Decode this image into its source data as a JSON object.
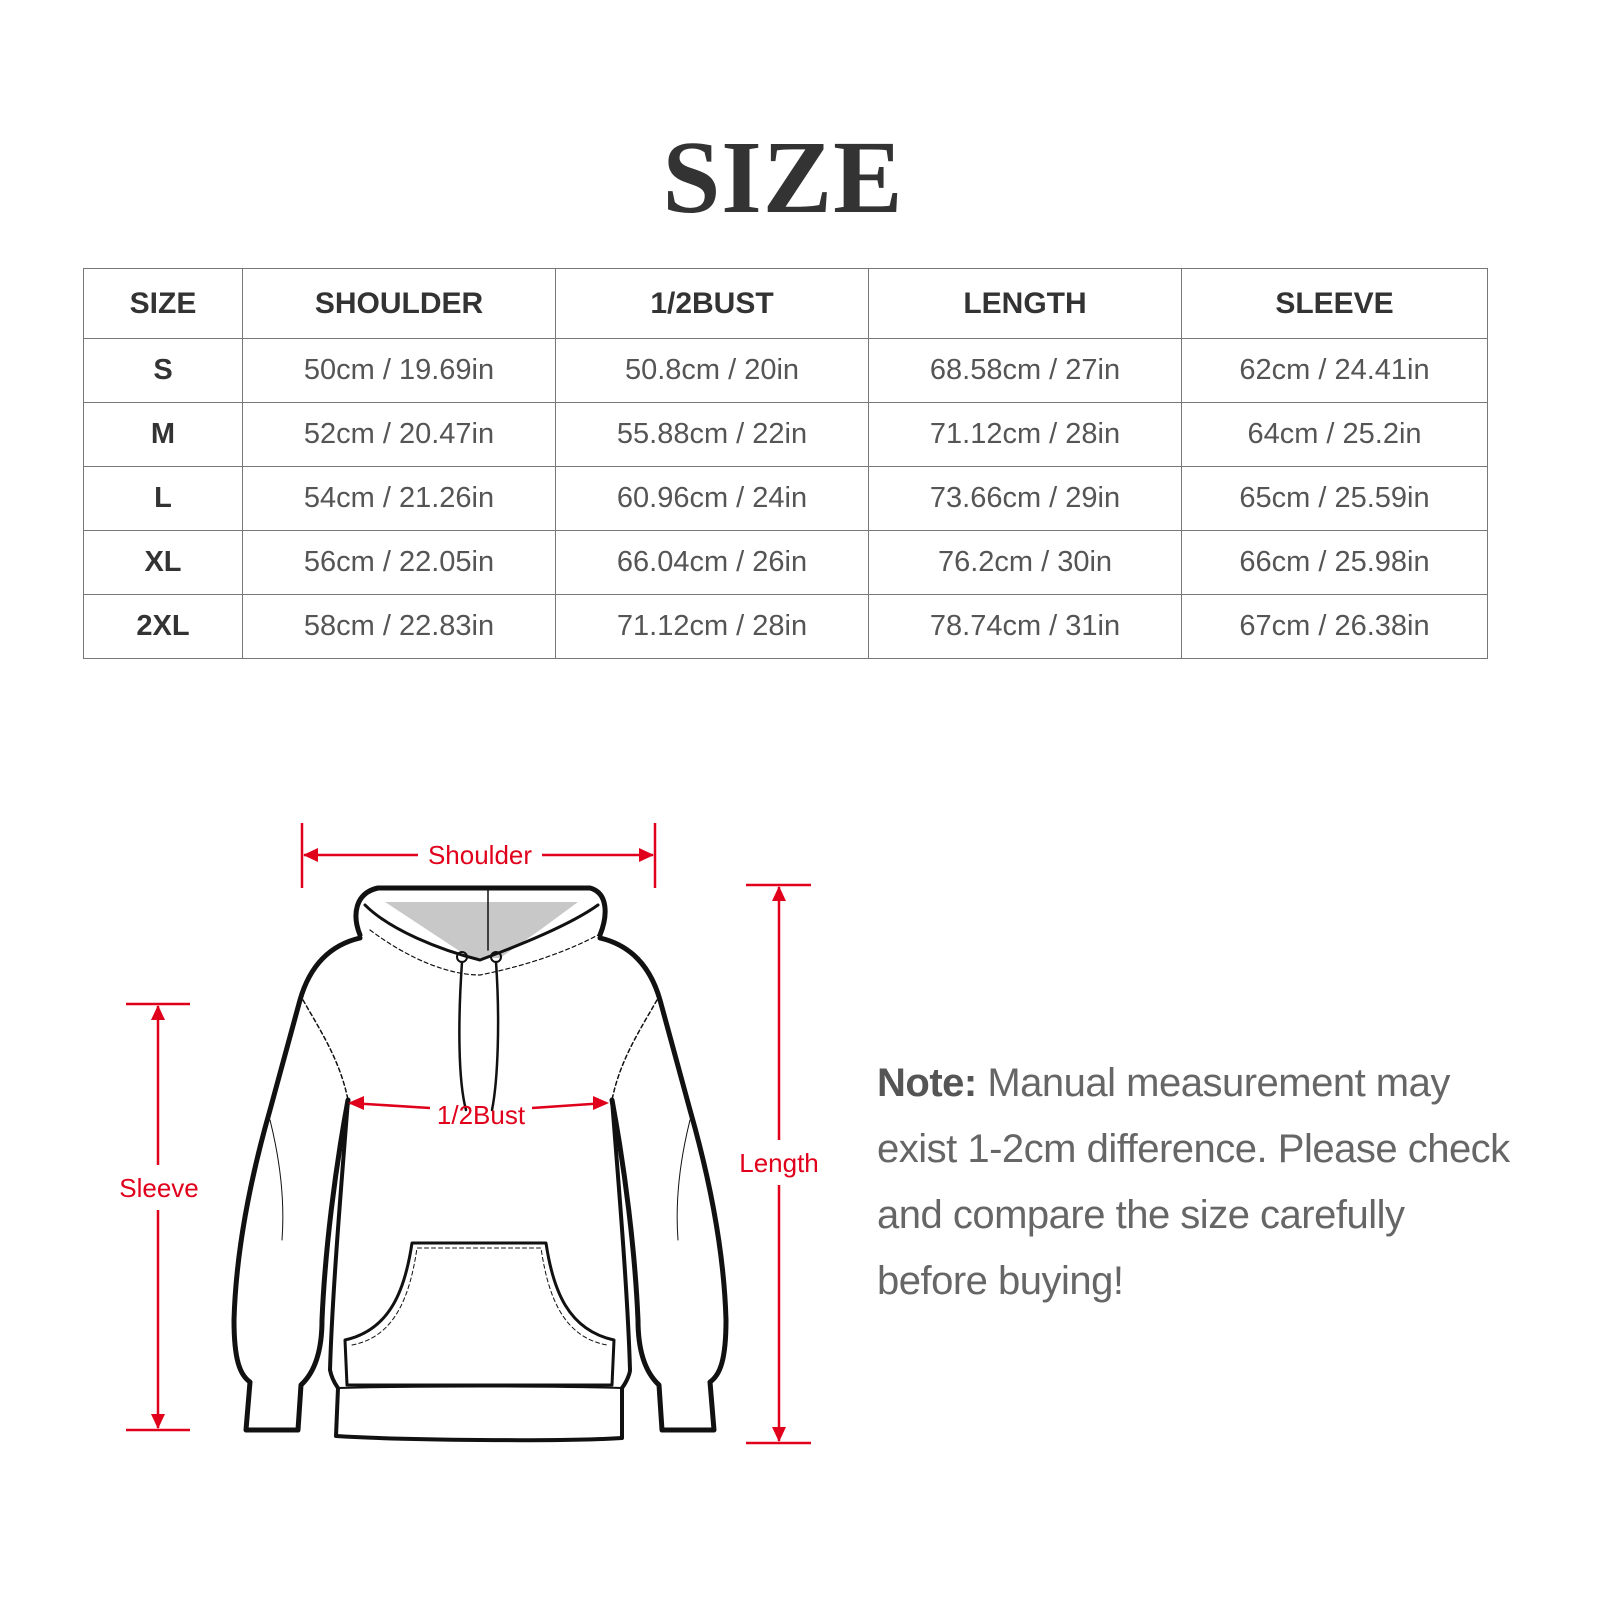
{
  "title": "SIZE",
  "table": {
    "headers": [
      "SIZE",
      "SHOULDER",
      "1/2BUST",
      "LENGTH",
      "SLEEVE"
    ],
    "rows": [
      [
        "S",
        "50cm / 19.69in",
        "50.8cm / 20in",
        "68.58cm / 27in",
        "62cm / 24.41in"
      ],
      [
        "M",
        "52cm / 20.47in",
        "55.88cm / 22in",
        "71.12cm / 28in",
        "64cm / 25.2in"
      ],
      [
        "L",
        "54cm / 21.26in",
        "60.96cm / 24in",
        "73.66cm / 29in",
        "65cm / 25.59in"
      ],
      [
        "XL",
        "56cm / 22.05in",
        "66.04cm / 26in",
        "76.2cm / 30in",
        "66cm / 25.98in"
      ],
      [
        "2XL",
        "58cm / 22.83in",
        "71.12cm / 28in",
        "78.74cm / 31in",
        "67cm / 26.38in"
      ]
    ]
  },
  "diagram": {
    "shoulder": "Shoulder",
    "bust": "1/2Bust",
    "length": "Length",
    "sleeve": "Sleeve",
    "accent_color": "#e0001b"
  },
  "note": {
    "label": "Note:",
    "text": " Manual measurement may exist 1-2cm difference. Please check and compare the size carefully before buying!"
  }
}
